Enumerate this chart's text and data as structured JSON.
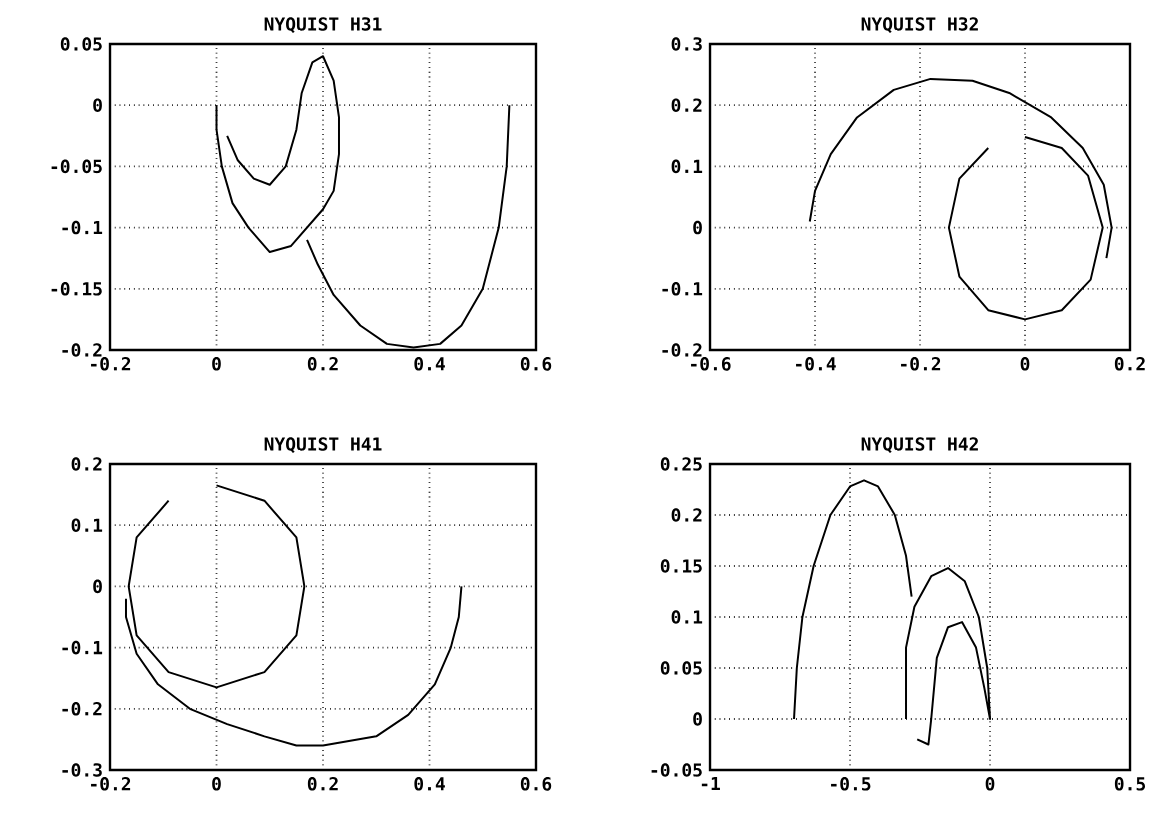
{
  "chart_data": [
    {
      "type": "line",
      "title": "NYQUIST H31",
      "xlim": [
        -0.2,
        0.6
      ],
      "xticks": [
        -0.2,
        0,
        0.2,
        0.4,
        0.6
      ],
      "ylim": [
        -0.2,
        0.05
      ],
      "yticks": [
        -0.2,
        -0.15,
        -0.1,
        -0.05,
        0,
        0.05
      ],
      "grid": true,
      "series": [
        {
          "color": "#000000",
          "x": [
            0.55,
            0.545,
            0.53,
            0.5,
            0.46,
            0.42,
            0.37,
            0.32,
            0.27,
            0.22,
            0.19,
            0.17
          ],
          "values": [
            0,
            -0.05,
            -0.1,
            -0.15,
            -0.18,
            -0.195,
            -0.198,
            -0.195,
            -0.18,
            -0.155,
            -0.13,
            -0.11
          ]
        },
        {
          "color": "#000000",
          "x": [
            0,
            0,
            0.01,
            0.03,
            0.06,
            0.1,
            0.14,
            0.17,
            0.2,
            0.22,
            0.23,
            0.23,
            0.22,
            0.2,
            0.18,
            0.16,
            0.15,
            0.13,
            0.1,
            0.07,
            0.04,
            0.02
          ],
          "values": [
            0,
            -0.02,
            -0.05,
            -0.08,
            -0.1,
            -0.12,
            -0.115,
            -0.1,
            -0.085,
            -0.07,
            -0.04,
            -0.01,
            0.02,
            0.04,
            0.035,
            0.01,
            -0.02,
            -0.05,
            -0.065,
            -0.06,
            -0.045,
            -0.025
          ]
        }
      ]
    },
    {
      "type": "line",
      "title": "NYQUIST H32",
      "xlim": [
        -0.6,
        0.2
      ],
      "xticks": [
        -0.6,
        -0.4,
        -0.2,
        0,
        0.2
      ],
      "ylim": [
        -0.2,
        0.3
      ],
      "yticks": [
        -0.2,
        -0.1,
        0,
        0.1,
        0.2,
        0.3
      ],
      "grid": true,
      "series": [
        {
          "color": "#000000",
          "x": [
            -0.41,
            -0.4,
            -0.37,
            -0.32,
            -0.25,
            -0.18,
            -0.1,
            -0.03,
            0.05,
            0.11,
            0.15,
            0.165,
            0.155
          ],
          "values": [
            0.01,
            0.06,
            0.12,
            0.18,
            0.225,
            0.243,
            0.24,
            0.22,
            0.18,
            0.13,
            0.07,
            0,
            -0.05
          ]
        },
        {
          "color": "#000000",
          "x": [
            0,
            0.07,
            0.12,
            0.148,
            0.125,
            0.07,
            0,
            -0.07,
            -0.125,
            -0.145,
            -0.125,
            -0.07
          ],
          "values": [
            0.148,
            0.13,
            0.085,
            0,
            -0.085,
            -0.135,
            -0.15,
            -0.135,
            -0.08,
            0,
            0.08,
            0.13
          ]
        }
      ]
    },
    {
      "type": "line",
      "title": "NYQUIST H41",
      "xlim": [
        -0.2,
        0.6
      ],
      "xticks": [
        -0.2,
        0,
        0.2,
        0.4,
        0.6
      ],
      "ylim": [
        -0.3,
        0.2
      ],
      "yticks": [
        -0.3,
        -0.2,
        -0.1,
        0,
        0.1,
        0.2
      ],
      "grid": true,
      "series": [
        {
          "color": "#000000",
          "x": [
            0.46,
            0.455,
            0.44,
            0.41,
            0.36,
            0.3,
            0.2,
            0.15,
            0.09,
            0.02,
            -0.05,
            -0.11,
            -0.15,
            -0.17,
            -0.17
          ],
          "values": [
            0,
            -0.05,
            -0.1,
            -0.16,
            -0.21,
            -0.245,
            -0.26,
            -0.26,
            -0.245,
            -0.225,
            -0.2,
            -0.16,
            -0.11,
            -0.05,
            -0.02
          ]
        },
        {
          "color": "#000000",
          "x": [
            0,
            0.09,
            0.15,
            0.165,
            0.15,
            0.09,
            0,
            -0.09,
            -0.15,
            -0.165,
            -0.15,
            -0.09
          ],
          "values": [
            0.165,
            0.14,
            0.08,
            0,
            -0.08,
            -0.14,
            -0.165,
            -0.14,
            -0.08,
            0,
            0.08,
            0.14
          ]
        }
      ]
    },
    {
      "type": "line",
      "title": "NYQUIST H42",
      "xlim": [
        -1,
        0.5
      ],
      "xticks": [
        -1,
        -0.5,
        0,
        0.5
      ],
      "ylim": [
        -0.05,
        0.25
      ],
      "yticks": [
        -0.05,
        0,
        0.05,
        0.1,
        0.15,
        0.2,
        0.25
      ],
      "grid": true,
      "series": [
        {
          "color": "#000000",
          "x": [
            -0.7,
            -0.69,
            -0.67,
            -0.63,
            -0.57,
            -0.5,
            -0.45,
            -0.4,
            -0.34,
            -0.3,
            -0.28
          ],
          "values": [
            0,
            0.05,
            0.1,
            0.15,
            0.2,
            0.228,
            0.234,
            0.228,
            0.2,
            0.16,
            0.12
          ]
        },
        {
          "color": "#000000",
          "x": [
            -0.3,
            -0.3,
            -0.27,
            -0.21,
            -0.15,
            -0.09,
            -0.04,
            -0.01,
            0,
            -0.02,
            -0.05,
            -0.1,
            -0.15,
            -0.19,
            -0.21,
            -0.22,
            -0.26
          ],
          "values": [
            0,
            0.07,
            0.11,
            0.14,
            0.148,
            0.135,
            0.1,
            0.05,
            0,
            0.03,
            0.07,
            0.095,
            0.09,
            0.06,
            0,
            -0.025,
            -0.02
          ]
        }
      ]
    }
  ]
}
